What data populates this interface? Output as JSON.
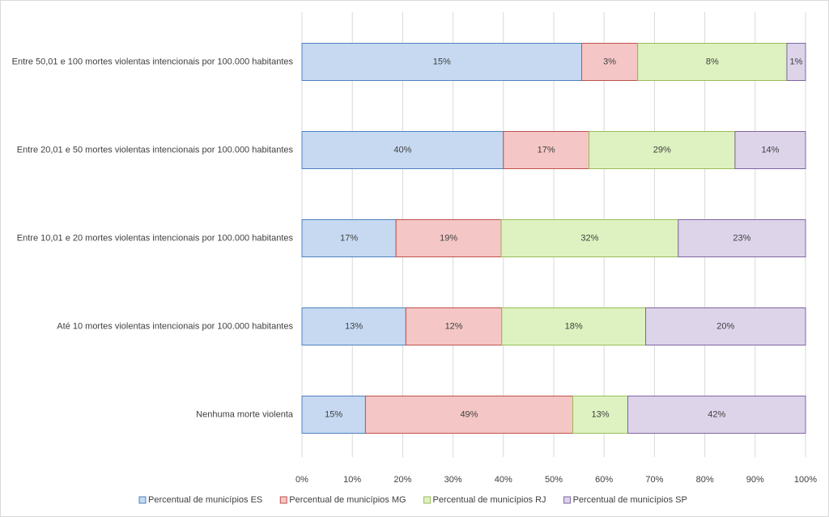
{
  "chart_data": {
    "type": "bar",
    "orientation": "horizontal",
    "stacking": "percent",
    "categories": [
      "Entre 50,01 e 100 mortes violentas intencionais por 100.000 habitantes",
      "Entre 20,01 e 50 mortes violentas intencionais por 100.000 habitantes",
      "Entre 10,01 e 20 mortes violentas intencionais por 100.000 habitantes",
      "Até 10 mortes violentas intencionais por 100.000 habitantes",
      "Nenhuma morte violenta"
    ],
    "series": [
      {
        "name": "Percentual de municípios ES",
        "color": "#c6d9f1",
        "edge": "#4f81bd",
        "values": [
          15,
          40,
          17,
          13,
          15
        ],
        "value_labels": [
          "15%",
          "40%",
          "17%",
          "13%",
          "15%"
        ]
      },
      {
        "name": "Percentual de municípios MG",
        "color": "#f4c7c6",
        "edge": "#c0504d",
        "values": [
          3,
          17,
          19,
          12,
          49
        ],
        "value_labels": [
          "3%",
          "17%",
          "19%",
          "12%",
          "49%"
        ]
      },
      {
        "name": "Percentual de municípios RJ",
        "color": "#ddf2c0",
        "edge": "#9bbb59",
        "values": [
          8,
          29,
          32,
          18,
          13
        ],
        "value_labels": [
          "8%",
          "29%",
          "32%",
          "18%",
          "13%"
        ]
      },
      {
        "name": "Percentual de municípios SP",
        "color": "#ddd4ea",
        "edge": "#8064a2",
        "values": [
          1,
          14,
          23,
          20,
          42
        ],
        "value_labels": [
          "1%",
          "14%",
          "23%",
          "20%",
          "42%"
        ]
      }
    ],
    "xlim": [
      0,
      100
    ],
    "xticks": [
      {
        "value": 0,
        "label": "0%"
      },
      {
        "value": 10,
        "label": "10%"
      },
      {
        "value": 20,
        "label": "20%"
      },
      {
        "value": 30,
        "label": "30%"
      },
      {
        "value": 40,
        "label": "40%"
      },
      {
        "value": 50,
        "label": "50%"
      },
      {
        "value": 60,
        "label": "60%"
      },
      {
        "value": 70,
        "label": "70%"
      },
      {
        "value": 80,
        "label": "80%"
      },
      {
        "value": 90,
        "label": "90%"
      },
      {
        "value": 100,
        "label": "100%"
      }
    ],
    "grid": true,
    "legend": "bottom"
  }
}
